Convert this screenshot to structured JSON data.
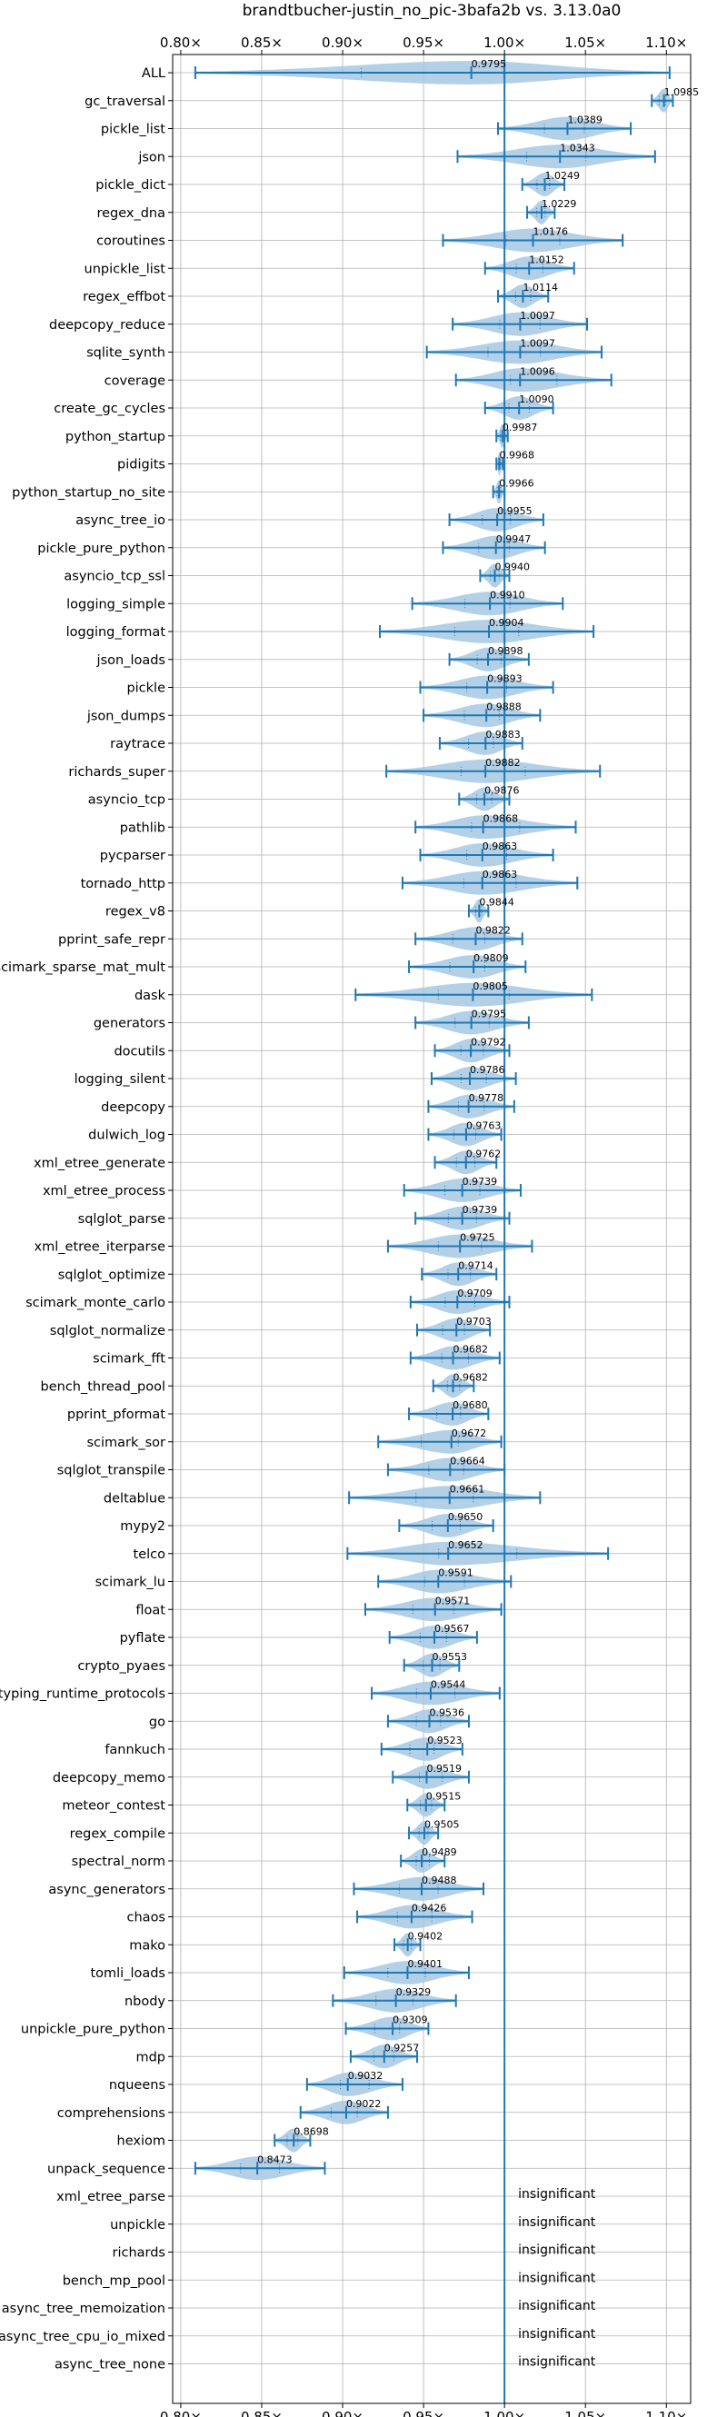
{
  "chart_data": {
    "type": "violin",
    "title": "brandtbucher-justin_no_pic-3bafa2b vs. 3.13.0a0",
    "xlim": [
      0.795,
      1.115
    ],
    "x_ticks": [
      0.8,
      0.85,
      0.9,
      0.95,
      1.0,
      1.05,
      1.1
    ],
    "x_tick_labels": [
      "0.80×",
      "0.85×",
      "0.90×",
      "0.95×",
      "1.00×",
      "1.05×",
      "1.10×"
    ],
    "reference_line": 1.0,
    "grid": true,
    "insignificant_label": "insignificant",
    "benchmarks": [
      {
        "name": "ALL",
        "value": 0.9795,
        "min": 0.809,
        "max": 1.102,
        "label": "0.9795"
      },
      {
        "name": "gc_traversal",
        "value": 1.0985,
        "min": 1.091,
        "max": 1.104,
        "label": "1.0985"
      },
      {
        "name": "pickle_list",
        "value": 1.0389,
        "min": 0.996,
        "max": 1.078,
        "label": "1.0389"
      },
      {
        "name": "json",
        "value": 1.0343,
        "min": 0.971,
        "max": 1.093,
        "label": "1.0343"
      },
      {
        "name": "pickle_dict",
        "value": 1.0249,
        "min": 1.011,
        "max": 1.037,
        "label": "1.0249"
      },
      {
        "name": "regex_dna",
        "value": 1.0229,
        "min": 1.014,
        "max": 1.031,
        "label": "1.0229"
      },
      {
        "name": "coroutines",
        "value": 1.0176,
        "min": 0.962,
        "max": 1.073,
        "label": "1.0176"
      },
      {
        "name": "unpickle_list",
        "value": 1.0152,
        "min": 0.988,
        "max": 1.043,
        "label": "1.0152"
      },
      {
        "name": "regex_effbot",
        "value": 1.0114,
        "min": 0.996,
        "max": 1.027,
        "label": "1.0114"
      },
      {
        "name": "deepcopy_reduce",
        "value": 1.0097,
        "min": 0.968,
        "max": 1.051,
        "label": "1.0097"
      },
      {
        "name": "sqlite_synth",
        "value": 1.0097,
        "min": 0.952,
        "max": 1.06,
        "label": "1.0097"
      },
      {
        "name": "coverage",
        "value": 1.0096,
        "min": 0.97,
        "max": 1.066,
        "label": "1.0096"
      },
      {
        "name": "create_gc_cycles",
        "value": 1.009,
        "min": 0.988,
        "max": 1.03,
        "label": "1.0090"
      },
      {
        "name": "python_startup",
        "value": 0.9987,
        "min": 0.995,
        "max": 1.002,
        "label": "0.9987"
      },
      {
        "name": "pidigits",
        "value": 0.9968,
        "min": 0.995,
        "max": 0.999,
        "label": "0.9968"
      },
      {
        "name": "python_startup_no_site",
        "value": 0.9966,
        "min": 0.993,
        "max": 1.0,
        "label": "0.9966"
      },
      {
        "name": "async_tree_io",
        "value": 0.9955,
        "min": 0.966,
        "max": 1.024,
        "label": "0.9955"
      },
      {
        "name": "pickle_pure_python",
        "value": 0.9947,
        "min": 0.962,
        "max": 1.025,
        "label": "0.9947"
      },
      {
        "name": "asyncio_tcp_ssl",
        "value": 0.994,
        "min": 0.985,
        "max": 1.003,
        "label": "0.9940"
      },
      {
        "name": "logging_simple",
        "value": 0.991,
        "min": 0.943,
        "max": 1.036,
        "label": "0.9910"
      },
      {
        "name": "logging_format",
        "value": 0.9904,
        "min": 0.923,
        "max": 1.055,
        "label": "0.9904"
      },
      {
        "name": "json_loads",
        "value": 0.9898,
        "min": 0.966,
        "max": 1.015,
        "label": "0.9898"
      },
      {
        "name": "pickle",
        "value": 0.9893,
        "min": 0.948,
        "max": 1.03,
        "label": "0.9893"
      },
      {
        "name": "json_dumps",
        "value": 0.9888,
        "min": 0.95,
        "max": 1.022,
        "label": "0.9888"
      },
      {
        "name": "raytrace",
        "value": 0.9883,
        "min": 0.96,
        "max": 1.011,
        "label": "0.9883"
      },
      {
        "name": "richards_super",
        "value": 0.9882,
        "min": 0.927,
        "max": 1.059,
        "label": "0.9882"
      },
      {
        "name": "asyncio_tcp",
        "value": 0.9876,
        "min": 0.972,
        "max": 1.003,
        "label": "0.9876"
      },
      {
        "name": "pathlib",
        "value": 0.9868,
        "min": 0.945,
        "max": 1.044,
        "label": "0.9868"
      },
      {
        "name": "pycparser",
        "value": 0.9863,
        "min": 0.948,
        "max": 1.03,
        "label": "0.9863"
      },
      {
        "name": "tornado_http",
        "value": 0.9863,
        "min": 0.937,
        "max": 1.045,
        "label": "0.9863"
      },
      {
        "name": "regex_v8",
        "value": 0.9844,
        "min": 0.978,
        "max": 0.99,
        "label": "0.9844"
      },
      {
        "name": "pprint_safe_repr",
        "value": 0.9822,
        "min": 0.945,
        "max": 1.011,
        "label": "0.9822"
      },
      {
        "name": "scimark_sparse_mat_mult",
        "value": 0.9809,
        "min": 0.941,
        "max": 1.013,
        "label": "0.9809"
      },
      {
        "name": "dask",
        "value": 0.9805,
        "min": 0.908,
        "max": 1.054,
        "label": "0.9805"
      },
      {
        "name": "generators",
        "value": 0.9795,
        "min": 0.945,
        "max": 1.015,
        "label": "0.9795"
      },
      {
        "name": "docutils",
        "value": 0.9792,
        "min": 0.957,
        "max": 1.003,
        "label": "0.9792"
      },
      {
        "name": "logging_silent",
        "value": 0.9786,
        "min": 0.955,
        "max": 1.007,
        "label": "0.9786"
      },
      {
        "name": "deepcopy",
        "value": 0.9778,
        "min": 0.953,
        "max": 1.006,
        "label": "0.9778"
      },
      {
        "name": "dulwich_log",
        "value": 0.9763,
        "min": 0.953,
        "max": 0.998,
        "label": "0.9763"
      },
      {
        "name": "xml_etree_generate",
        "value": 0.9762,
        "min": 0.957,
        "max": 0.995,
        "label": "0.9762"
      },
      {
        "name": "xml_etree_process",
        "value": 0.9739,
        "min": 0.938,
        "max": 1.01,
        "label": "0.9739"
      },
      {
        "name": "sqlglot_parse",
        "value": 0.9739,
        "min": 0.945,
        "max": 1.003,
        "label": "0.9739"
      },
      {
        "name": "xml_etree_iterparse",
        "value": 0.9725,
        "min": 0.928,
        "max": 1.017,
        "label": "0.9725"
      },
      {
        "name": "sqlglot_optimize",
        "value": 0.9714,
        "min": 0.949,
        "max": 0.995,
        "label": "0.9714"
      },
      {
        "name": "scimark_monte_carlo",
        "value": 0.9709,
        "min": 0.942,
        "max": 1.003,
        "label": "0.9709"
      },
      {
        "name": "sqlglot_normalize",
        "value": 0.9703,
        "min": 0.946,
        "max": 0.991,
        "label": "0.9703"
      },
      {
        "name": "scimark_fft",
        "value": 0.9682,
        "min": 0.942,
        "max": 0.997,
        "label": "0.9682"
      },
      {
        "name": "bench_thread_pool",
        "value": 0.9682,
        "min": 0.956,
        "max": 0.981,
        "label": "0.9682"
      },
      {
        "name": "pprint_pformat",
        "value": 0.968,
        "min": 0.941,
        "max": 0.99,
        "label": "0.9680"
      },
      {
        "name": "scimark_sor",
        "value": 0.9672,
        "min": 0.922,
        "max": 0.998,
        "label": "0.9672"
      },
      {
        "name": "sqlglot_transpile",
        "value": 0.9664,
        "min": 0.928,
        "max": 1.0,
        "label": "0.9664"
      },
      {
        "name": "deltablue",
        "value": 0.9661,
        "min": 0.904,
        "max": 1.022,
        "label": "0.9661"
      },
      {
        "name": "mypy2",
        "value": 0.965,
        "min": 0.935,
        "max": 0.993,
        "label": "0.9650"
      },
      {
        "name": "telco",
        "value": 0.9652,
        "min": 0.903,
        "max": 1.064,
        "label": "0.9652"
      },
      {
        "name": "scimark_lu",
        "value": 0.9591,
        "min": 0.922,
        "max": 1.004,
        "label": "0.9591"
      },
      {
        "name": "float",
        "value": 0.9571,
        "min": 0.914,
        "max": 0.998,
        "label": "0.9571"
      },
      {
        "name": "pyflate",
        "value": 0.9567,
        "min": 0.929,
        "max": 0.983,
        "label": "0.9567"
      },
      {
        "name": "crypto_pyaes",
        "value": 0.9553,
        "min": 0.938,
        "max": 0.972,
        "label": "0.9553"
      },
      {
        "name": "typing_runtime_protocols",
        "value": 0.9544,
        "min": 0.918,
        "max": 0.997,
        "label": "0.9544"
      },
      {
        "name": "go",
        "value": 0.9536,
        "min": 0.928,
        "max": 0.978,
        "label": "0.9536"
      },
      {
        "name": "fannkuch",
        "value": 0.9523,
        "min": 0.924,
        "max": 0.974,
        "label": "0.9523"
      },
      {
        "name": "deepcopy_memo",
        "value": 0.9519,
        "min": 0.931,
        "max": 0.978,
        "label": "0.9519"
      },
      {
        "name": "meteor_contest",
        "value": 0.9515,
        "min": 0.94,
        "max": 0.963,
        "label": "0.9515"
      },
      {
        "name": "regex_compile",
        "value": 0.9505,
        "min": 0.941,
        "max": 0.959,
        "label": "0.9505"
      },
      {
        "name": "spectral_norm",
        "value": 0.9489,
        "min": 0.936,
        "max": 0.963,
        "label": "0.9489"
      },
      {
        "name": "async_generators",
        "value": 0.9488,
        "min": 0.907,
        "max": 0.987,
        "label": "0.9488"
      },
      {
        "name": "chaos",
        "value": 0.9426,
        "min": 0.909,
        "max": 0.98,
        "label": "0.9426"
      },
      {
        "name": "mako",
        "value": 0.9402,
        "min": 0.932,
        "max": 0.948,
        "label": "0.9402"
      },
      {
        "name": "tomli_loads",
        "value": 0.9401,
        "min": 0.901,
        "max": 0.978,
        "label": "0.9401"
      },
      {
        "name": "nbody",
        "value": 0.9329,
        "min": 0.894,
        "max": 0.97,
        "label": "0.9329"
      },
      {
        "name": "unpickle_pure_python",
        "value": 0.9309,
        "min": 0.902,
        "max": 0.953,
        "label": "0.9309"
      },
      {
        "name": "mdp",
        "value": 0.9257,
        "min": 0.905,
        "max": 0.946,
        "label": "0.9257"
      },
      {
        "name": "nqueens",
        "value": 0.9032,
        "min": 0.878,
        "max": 0.937,
        "label": "0.9032"
      },
      {
        "name": "comprehensions",
        "value": 0.9022,
        "min": 0.874,
        "max": 0.928,
        "label": "0.9022"
      },
      {
        "name": "hexiom",
        "value": 0.8698,
        "min": 0.858,
        "max": 0.88,
        "label": "0.8698"
      },
      {
        "name": "unpack_sequence",
        "value": 0.8473,
        "min": 0.809,
        "max": 0.889,
        "label": "0.8473"
      },
      {
        "name": "xml_etree_parse",
        "insignificant": true
      },
      {
        "name": "unpickle",
        "insignificant": true
      },
      {
        "name": "richards",
        "insignificant": true
      },
      {
        "name": "bench_mp_pool",
        "insignificant": true
      },
      {
        "name": "async_tree_memoization",
        "insignificant": true
      },
      {
        "name": "async_tree_cpu_io_mixed",
        "insignificant": true
      },
      {
        "name": "async_tree_none",
        "insignificant": true
      }
    ],
    "colors": {
      "violin": "#a6c8e3",
      "line": "#1f77b4",
      "grid": "#b0b0b0"
    }
  }
}
